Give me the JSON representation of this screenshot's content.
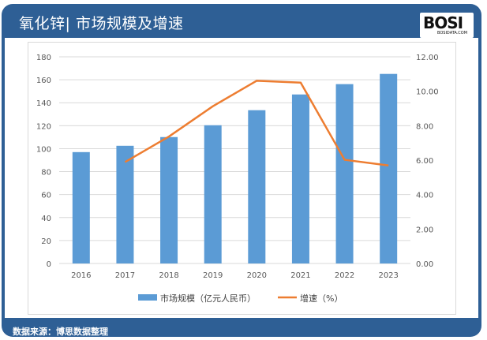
{
  "header": {
    "title": "氧化锌| 市场规模及增速",
    "logo_text": "BOSI",
    "logo_domain": "BOSIDATA.COM"
  },
  "footer": {
    "source": "数据来源：博思数据整理"
  },
  "colors": {
    "frame": "#2e5f95",
    "bar": "#5b9bd5",
    "line": "#ed7d31"
  },
  "chart_data": {
    "type": "bar+line",
    "categories": [
      "2016",
      "2017",
      "2018",
      "2019",
      "2020",
      "2021",
      "2022",
      "2023"
    ],
    "series": [
      {
        "name": "市场规模（亿元人民币）",
        "type": "bar",
        "axis": "left",
        "values": [
          97.0,
          102.5,
          110.1,
          120.4,
          133.5,
          147.2,
          156.2,
          165.1
        ]
      },
      {
        "name": "增速（%）",
        "type": "line",
        "axis": "right",
        "values": [
          null,
          5.89,
          7.37,
          9.13,
          10.61,
          10.5,
          6.02,
          5.69
        ]
      }
    ],
    "y_left": {
      "range": [
        0,
        180
      ],
      "ticks": [
        "0",
        "20",
        "40",
        "60",
        "80",
        "100",
        "120",
        "140",
        "160",
        "180"
      ]
    },
    "y_right": {
      "range": [
        0,
        12
      ],
      "ticks": [
        "0.00",
        "2.00",
        "4.00",
        "6.00",
        "8.00",
        "10.00",
        "12.00"
      ]
    },
    "grid": true,
    "legend": "bottom"
  }
}
